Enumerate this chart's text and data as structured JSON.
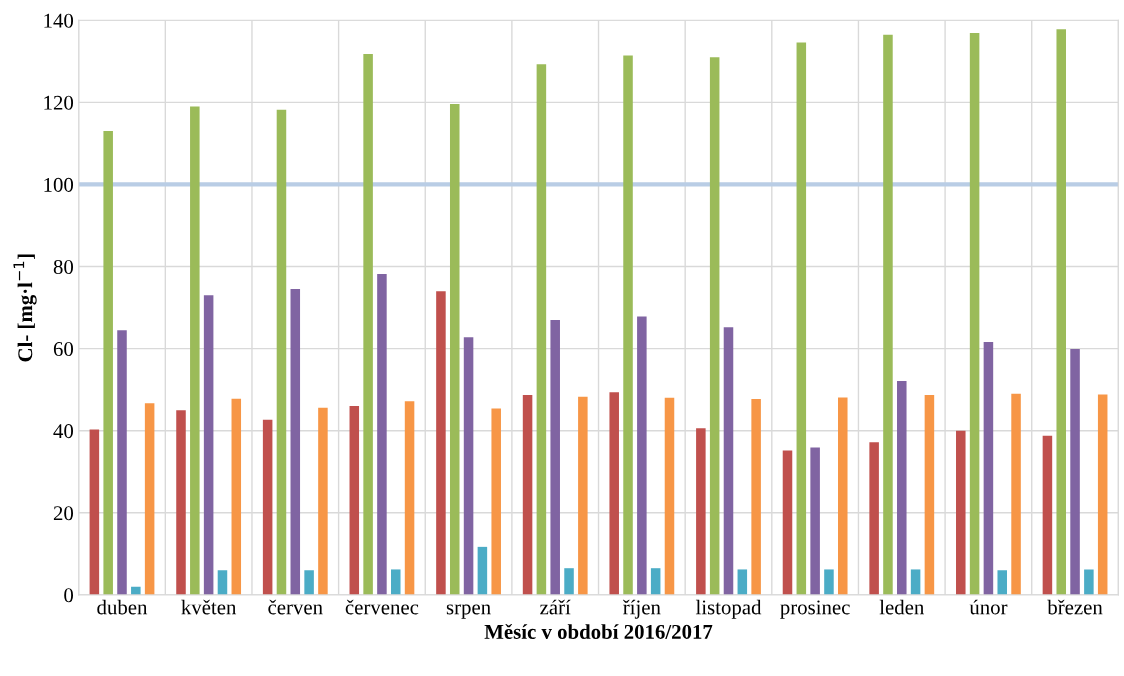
{
  "chart_data": {
    "type": "bar",
    "xlabel": "Měsíc v období 2016/2017",
    "ylabel": "Cl- [mg·l$^{−1}$]",
    "categories": [
      "duben",
      "květen",
      "červen",
      "červenec",
      "srpen",
      "září",
      "říjen",
      "listopad",
      "prosinec",
      "leden",
      "únor",
      "březen"
    ],
    "series": [
      {
        "color": "#c0504d",
        "values": [
          40.3,
          45,
          42.7,
          46,
          74,
          48.7,
          49.4,
          40.6,
          35.2,
          37.2,
          40,
          38.8
        ]
      },
      {
        "color": "#9bbb59",
        "values": [
          113,
          119,
          118.2,
          131.8,
          119.6,
          129.3,
          131.4,
          131,
          134.6,
          136.5,
          136.9,
          137.8
        ]
      },
      {
        "color": "#8064a2",
        "values": [
          64.5,
          73,
          74.5,
          78.2,
          62.8,
          67,
          67.8,
          65.2,
          35.9,
          52.1,
          61.6,
          59.9
        ]
      },
      {
        "color": "#4bacc6",
        "values": [
          2,
          6,
          6,
          6.2,
          11.7,
          6.5,
          6.5,
          6.2,
          6.2,
          6.2,
          6,
          6.2
        ]
      },
      {
        "color": "#f79646",
        "values": [
          46.7,
          47.8,
          45.6,
          47.2,
          45.4,
          48.3,
          48,
          47.7,
          48.1,
          48.7,
          49,
          48.8
        ]
      }
    ],
    "ylim": [
      0,
      140
    ],
    "yticks": [
      0,
      20,
      40,
      60,
      80,
      100,
      120,
      140
    ],
    "grid": true,
    "ref_lines": [
      {
        "axis": "y",
        "value": 100,
        "color": "#b9cde5"
      }
    ]
  }
}
